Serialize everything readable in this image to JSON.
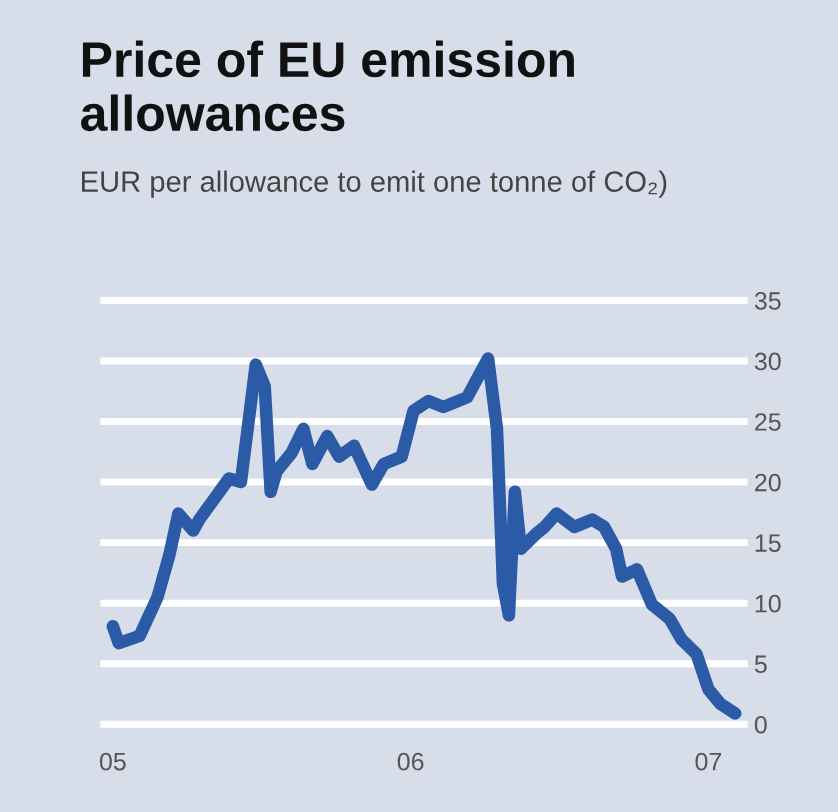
{
  "chart_data": {
    "type": "line",
    "title": "Price of EU emission allowances",
    "subtitle": "EUR per allowance to emit one tonne of CO₂)",
    "x": [
      2005.0,
      2005.02,
      2005.09,
      2005.15,
      2005.19,
      2005.22,
      2005.27,
      2005.29,
      2005.34,
      2005.39,
      2005.43,
      2005.48,
      2005.51,
      2005.53,
      2005.55,
      2005.6,
      2005.64,
      2005.67,
      2005.72,
      2005.76,
      2005.81,
      2005.87,
      2005.91,
      2005.97,
      2006.01,
      2006.06,
      2006.11,
      2006.19,
      2006.26,
      2006.29,
      2006.31,
      2006.33,
      2006.35,
      2006.37,
      2006.42,
      2006.45,
      2006.49,
      2006.55,
      2006.61,
      2006.65,
      2006.69,
      2006.71,
      2006.76,
      2006.81,
      2006.87,
      2006.91,
      2006.96,
      2007.0,
      2007.04,
      2007.09
    ],
    "series": [
      {
        "color": "#2b5aa6",
        "values": [
          8.1,
          6.7,
          7.3,
          10.5,
          14,
          17.4,
          16,
          16.9,
          18.6,
          20.3,
          20,
          29.7,
          27.9,
          19.2,
          20.9,
          22.4,
          24.4,
          21.5,
          23.8,
          22.1,
          23,
          19.8,
          21.5,
          22.1,
          25.9,
          26.7,
          26.2,
          27,
          30.2,
          24.4,
          11.6,
          9,
          19.2,
          14.5,
          15.7,
          16.3,
          17.4,
          16.3,
          16.9,
          16.3,
          14.5,
          12.2,
          12.8,
          9.9,
          8.7,
          7,
          5.8,
          2.9,
          1.7,
          0.9
        ]
      }
    ],
    "xlim": [
      2004.97,
      2007.12
    ],
    "xticks": [
      {
        "value": 2005,
        "label": "05"
      },
      {
        "value": 2006,
        "label": "06"
      },
      {
        "value": 2007,
        "label": "07"
      }
    ],
    "ylim": [
      0,
      35
    ],
    "yticks": [
      0,
      5,
      10,
      15,
      20,
      25,
      30,
      35
    ],
    "grid": "y",
    "legend": false,
    "marker": "none",
    "line_style": "solid"
  }
}
